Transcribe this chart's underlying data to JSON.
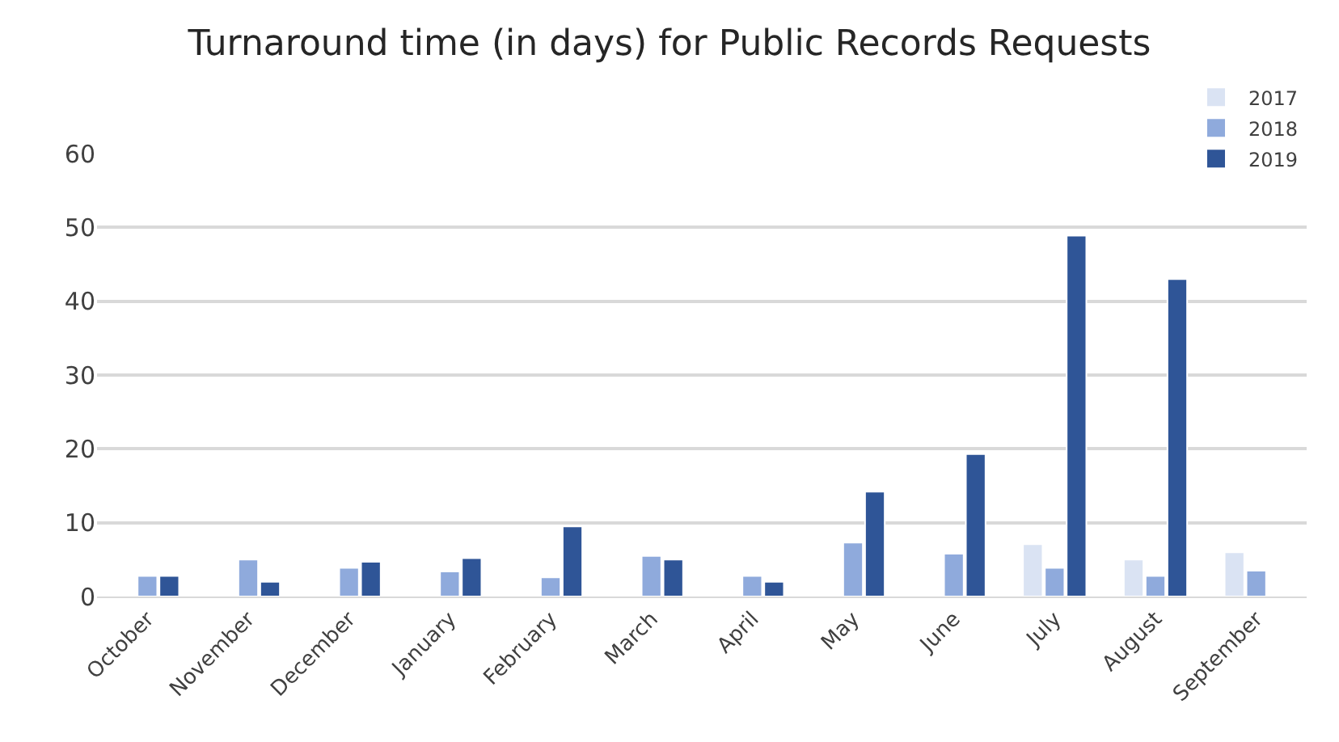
{
  "chart_data": {
    "type": "bar",
    "title": "Turnaround time (in days) for Public Records Requests",
    "categories": [
      "October",
      "November",
      "December",
      "January",
      "February",
      "March",
      "April",
      "May",
      "June",
      "July",
      "August",
      "September"
    ],
    "series": [
      {
        "name": "2017",
        "color": "#dae3f3",
        "values": [
          null,
          null,
          null,
          null,
          null,
          null,
          null,
          null,
          null,
          7.1,
          5.0,
          6.0
        ]
      },
      {
        "name": "2018",
        "color": "#8faadc",
        "values": [
          2.8,
          5.0,
          3.9,
          3.4,
          2.6,
          5.5,
          2.8,
          7.3,
          5.8,
          3.9,
          2.8,
          3.5
        ]
      },
      {
        "name": "2019",
        "color": "#2f5597",
        "values": [
          2.8,
          2.0,
          4.7,
          5.2,
          9.5,
          5.0,
          2.0,
          14.2,
          19.3,
          48.9,
          43.0,
          null
        ]
      }
    ],
    "ylim": [
      0,
      60
    ],
    "yticks": [
      0,
      10,
      20,
      30,
      40,
      50,
      60
    ],
    "grid": "y",
    "legend": "top right"
  }
}
